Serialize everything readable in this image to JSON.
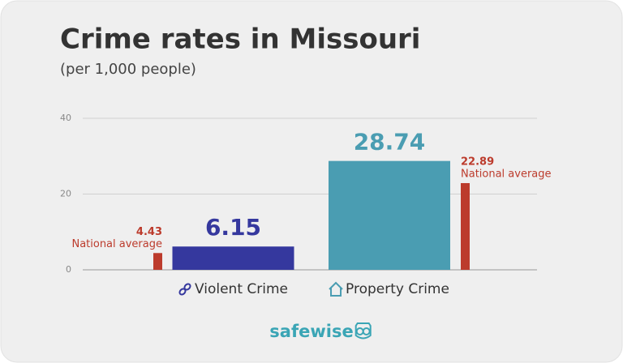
{
  "chart_data": {
    "type": "bar",
    "title": "Crime rates in Missouri",
    "subtitle": "(per 1,000 people)",
    "categories": [
      "Violent Crime",
      "Property Crime"
    ],
    "values": [
      6.15,
      28.74
    ],
    "colors": [
      "#35389e",
      "#4a9db2"
    ],
    "national_average": {
      "label": "National average",
      "values": [
        4.43,
        22.89
      ],
      "color": "#bc3b2c"
    },
    "ylim": [
      0,
      40
    ],
    "yticks": [
      0,
      20,
      40
    ],
    "grid": true,
    "brand": "safewise"
  }
}
